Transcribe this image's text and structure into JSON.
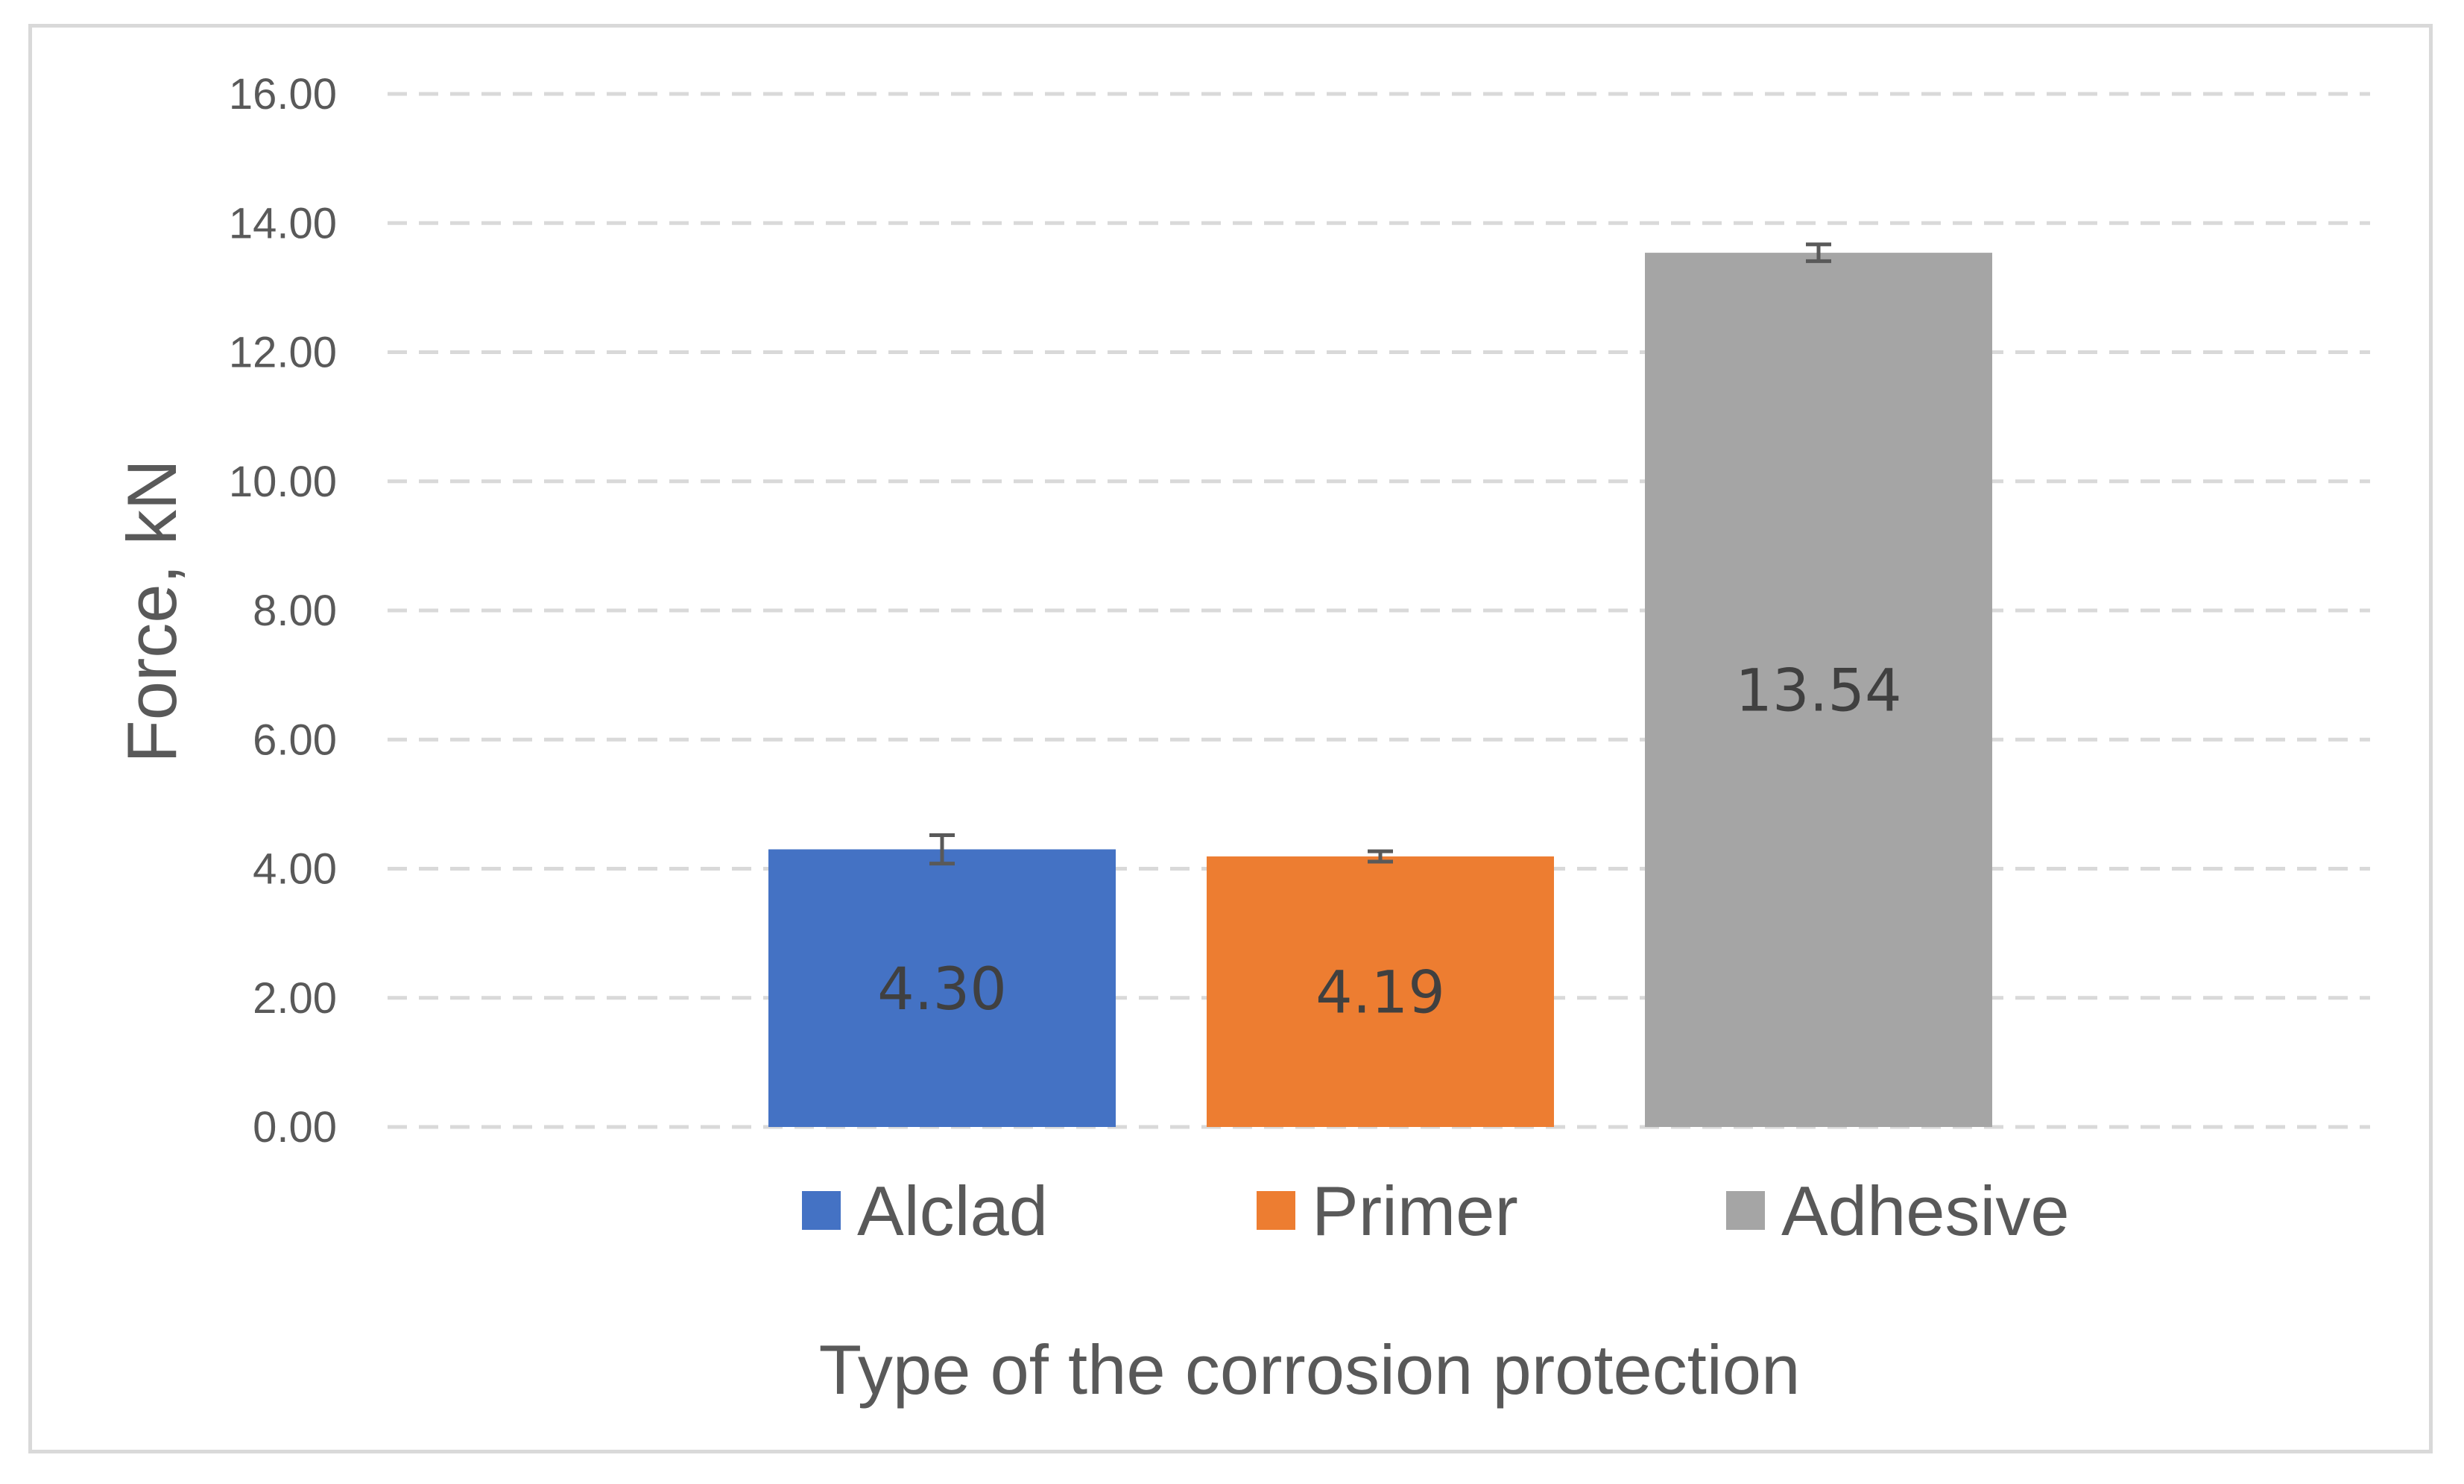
{
  "chart_data": {
    "type": "bar",
    "categories": [
      "Alclad",
      "Primer",
      "Adhesive"
    ],
    "values": [
      4.3,
      4.19,
      13.54
    ],
    "data_labels": [
      "4.30",
      "4.19",
      "13.54"
    ],
    "error": [
      0.22,
      0.08,
      0.13
    ],
    "colors": [
      "#4472c4",
      "#ed7d31",
      "#a5a5a5"
    ],
    "title": "",
    "xlabel": "Type of the corrosion protection",
    "ylabel": "Force, kN",
    "ylim": [
      0,
      16
    ],
    "yticks": [
      "0.00",
      "2.00",
      "4.00",
      "6.00",
      "8.00",
      "10.00",
      "12.00",
      "14.00",
      "16.00"
    ],
    "grid": true,
    "legend": {
      "position": "bottom",
      "entries": [
        "Alclad",
        "Primer",
        "Adhesive"
      ]
    }
  }
}
